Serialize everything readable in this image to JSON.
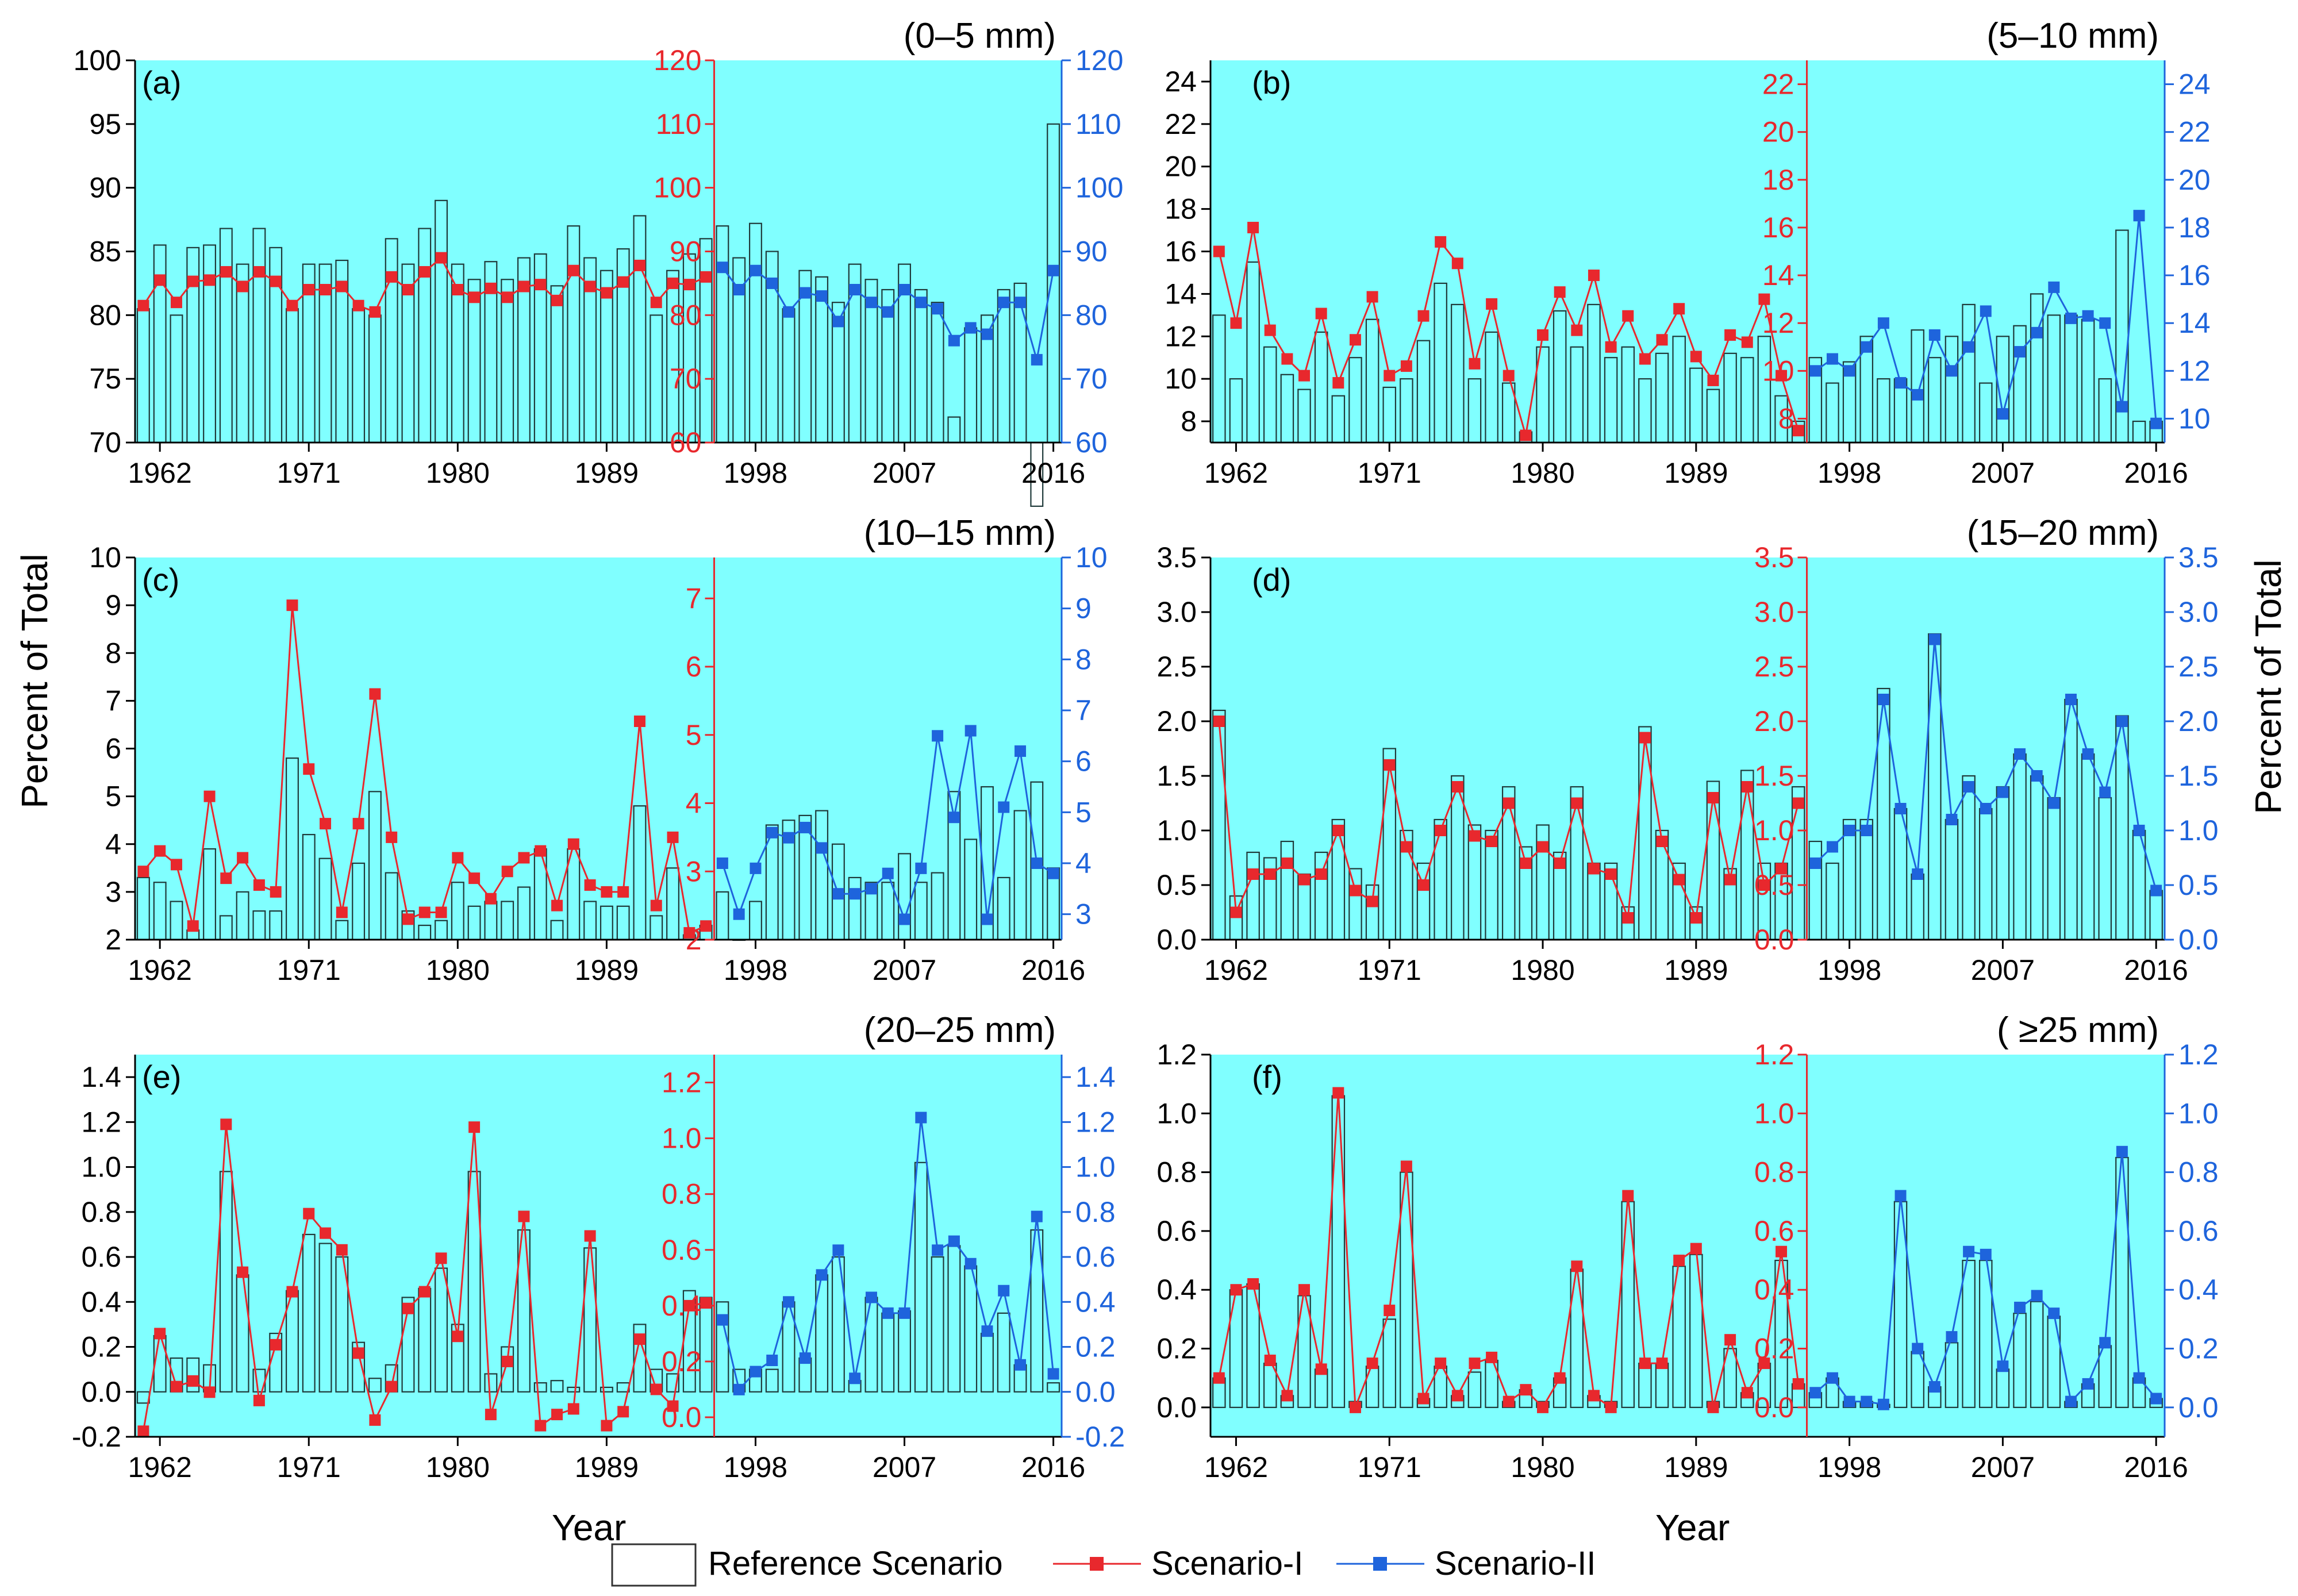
{
  "figure": {
    "y_axis_title": "Percent of Total",
    "x_axis_title": "Year",
    "colors": {
      "background": "#80ffff",
      "scenario_I": "#e8282d",
      "scenario_II": "#1e64dc",
      "bars": "#1f3a3a"
    },
    "legend": {
      "reference": "Reference Scenario",
      "scenario_I": "Scenario-I",
      "scenario_II": "Scenario-II"
    }
  },
  "chart_data": [
    {
      "type": "bar",
      "panel_label": "(a)",
      "title": "(0–5 mm)",
      "x_start": 1961,
      "x_end": 2016,
      "xticks": [
        1962,
        1971,
        1980,
        1989,
        1998,
        2007,
        2016
      ],
      "scenario_I_years": [
        1961,
        1995
      ],
      "scenario_II_years": [
        1996,
        2016
      ],
      "left_axis": {
        "ylim": [
          70,
          100
        ],
        "ticks": [
          70,
          75,
          80,
          85,
          90,
          95,
          100
        ]
      },
      "red_axis": {
        "ylim": [
          60,
          120
        ],
        "ticks": [
          60,
          70,
          80,
          90,
          100,
          110,
          120
        ]
      },
      "blue_axis": {
        "ylim": [
          60,
          120
        ],
        "ticks": [
          60,
          70,
          80,
          90,
          100,
          110,
          120
        ]
      },
      "reference_values": [
        80.5,
        85.5,
        80.0,
        85.3,
        85.5,
        86.8,
        84.0,
        86.8,
        85.3,
        80.5,
        84.0,
        84.0,
        84.3,
        80.5,
        80.0,
        86.0,
        84.0,
        86.8,
        89.0,
        84.0,
        82.8,
        84.2,
        82.8,
        84.5,
        84.8,
        82.3,
        87.0,
        84.5,
        83.5,
        85.2,
        87.8,
        80.0,
        83.5,
        84.8,
        86.0,
        87.0,
        84.5,
        87.2,
        85.0,
        80.5,
        83.5,
        83.0,
        81.0,
        84.0,
        82.8,
        82.0,
        84.0,
        82.0,
        81.0,
        72.0,
        79.0,
        80.0,
        82.0,
        82.5,
        65.0,
        95.0
      ],
      "scenario_I_values": [
        81.5,
        85.5,
        82.0,
        85.3,
        85.5,
        86.8,
        84.5,
        86.8,
        85.3,
        81.5,
        84.0,
        84.0,
        84.5,
        81.5,
        80.5,
        86.0,
        84.0,
        86.8,
        89.0,
        84.0,
        82.8,
        84.2,
        82.8,
        84.5,
        84.8,
        82.3,
        87.0,
        84.5,
        83.5,
        85.2,
        87.8,
        82.0,
        85.0,
        84.8,
        86.0
      ],
      "scenario_II_values": [
        87.5,
        84.0,
        87.0,
        85.0,
        80.5,
        83.5,
        83.0,
        79.0,
        84.0,
        82.0,
        80.5,
        84.0,
        82.0,
        81.0,
        76.0,
        78.0,
        77.0,
        82.0,
        82.0,
        73.0,
        87.0
      ]
    },
    {
      "type": "bar",
      "panel_label": "(b)",
      "title": "(5–10 mm)",
      "x_start": 1961,
      "x_end": 2016,
      "xticks": [
        1962,
        1971,
        1980,
        1989,
        1998,
        2007,
        2016
      ],
      "scenario_I_years": [
        1961,
        1995
      ],
      "scenario_II_years": [
        1996,
        2016
      ],
      "left_axis": {
        "ylim": [
          7,
          25
        ],
        "ticks": [
          8,
          10,
          12,
          14,
          16,
          18,
          20,
          22,
          24
        ]
      },
      "red_axis": {
        "ylim": [
          7,
          23
        ],
        "ticks": [
          8,
          10,
          12,
          14,
          16,
          18,
          20,
          22
        ]
      },
      "blue_axis": {
        "ylim": [
          9,
          25
        ],
        "ticks": [
          10,
          12,
          14,
          16,
          18,
          20,
          22,
          24
        ]
      },
      "reference_values": [
        13.0,
        10.0,
        15.5,
        11.5,
        10.2,
        9.5,
        12.2,
        9.2,
        11.0,
        12.8,
        9.6,
        10.0,
        11.8,
        14.5,
        13.5,
        10.0,
        12.2,
        9.8,
        7.5,
        11.5,
        13.2,
        11.5,
        13.5,
        11.0,
        11.5,
        10.0,
        11.2,
        12.0,
        10.5,
        9.5,
        11.2,
        11.0,
        12.0,
        9.2,
        8.0,
        11.0,
        9.8,
        10.8,
        12.0,
        10.0,
        10.0,
        12.3,
        11.0,
        12.0,
        13.5,
        9.8,
        12.0,
        12.5,
        14.0,
        13.0,
        13.0,
        12.8,
        10.0,
        17.0,
        8.0,
        8.0
      ],
      "scenario_I_values": [
        15.0,
        12.0,
        16.0,
        11.7,
        10.5,
        9.8,
        12.4,
        9.5,
        11.3,
        13.1,
        9.8,
        10.2,
        12.3,
        15.4,
        14.5,
        10.3,
        12.8,
        9.8,
        7.3,
        11.5,
        13.3,
        11.7,
        14.0,
        11.0,
        12.3,
        10.5,
        11.3,
        12.6,
        10.6,
        9.6,
        11.5,
        11.2,
        13.0,
        9.8,
        7.5
      ],
      "scenario_II_values": [
        12.0,
        12.5,
        12.0,
        13.0,
        14.0,
        11.5,
        11.0,
        13.5,
        12.0,
        13.0,
        14.5,
        10.2,
        12.8,
        13.6,
        15.5,
        14.2,
        14.3,
        14.0,
        10.5,
        18.5,
        9.8
      ]
    },
    {
      "type": "bar",
      "panel_label": "(c)",
      "title": "(10–15 mm)",
      "x_start": 1961,
      "x_end": 2016,
      "xticks": [
        1962,
        1971,
        1980,
        1989,
        1998,
        2007,
        2016
      ],
      "scenario_I_years": [
        1961,
        1995
      ],
      "scenario_II_years": [
        1996,
        2016
      ],
      "left_axis": {
        "ylim": [
          2,
          10
        ],
        "ticks": [
          2,
          3,
          4,
          5,
          6,
          7,
          8,
          9,
          10
        ]
      },
      "red_axis": {
        "ylim": [
          2,
          7.6
        ],
        "ticks": [
          2,
          3,
          4,
          5,
          6,
          7
        ]
      },
      "blue_axis": {
        "ylim": [
          2.5,
          10
        ],
        "ticks": [
          3,
          4,
          5,
          6,
          7,
          8,
          9,
          10
        ]
      },
      "reference_values": [
        3.3,
        3.2,
        2.8,
        2.2,
        3.9,
        2.5,
        3.0,
        2.6,
        2.6,
        5.8,
        4.2,
        3.7,
        2.4,
        3.6,
        5.1,
        3.4,
        2.6,
        2.3,
        2.4,
        3.2,
        2.7,
        2.8,
        2.8,
        3.1,
        3.9,
        2.4,
        3.9,
        2.8,
        2.7,
        2.7,
        4.8,
        2.5,
        3.5,
        2.1,
        2.3,
        3.0,
        2.0,
        2.8,
        4.4,
        4.5,
        4.6,
        4.7,
        4.0,
        3.3,
        3.2,
        3.2,
        3.8,
        3.2,
        3.4,
        5.1,
        4.1,
        5.2,
        3.3,
        4.7,
        5.3,
        3.5
      ],
      "scenario_I_values": [
        3.0,
        3.3,
        3.1,
        2.2,
        4.1,
        2.9,
        3.2,
        2.8,
        2.7,
        6.9,
        4.5,
        3.7,
        2.4,
        3.7,
        5.6,
        3.5,
        2.3,
        2.4,
        2.4,
        3.2,
        2.9,
        2.6,
        3.0,
        3.2,
        3.3,
        2.5,
        3.4,
        2.8,
        2.7,
        2.7,
        5.2,
        2.5,
        3.5,
        2.1,
        2.2
      ],
      "scenario_II_values": [
        4.0,
        3.0,
        3.9,
        4.6,
        4.5,
        4.7,
        4.3,
        3.4,
        3.4,
        3.5,
        3.8,
        2.9,
        3.9,
        6.5,
        4.9,
        6.6,
        2.9,
        5.1,
        6.2,
        4.0,
        3.8
      ]
    },
    {
      "type": "bar",
      "panel_label": "(d)",
      "title": "(15–20 mm)",
      "x_start": 1961,
      "x_end": 2016,
      "xticks": [
        1962,
        1971,
        1980,
        1989,
        1998,
        2007,
        2016
      ],
      "scenario_I_years": [
        1961,
        1995
      ],
      "scenario_II_years": [
        1996,
        2016
      ],
      "left_axis": {
        "ylim": [
          0,
          3.5
        ],
        "ticks": [
          0.0,
          0.5,
          1.0,
          1.5,
          2.0,
          2.5,
          3.0,
          3.5
        ]
      },
      "red_axis": {
        "ylim": [
          0,
          3.5
        ],
        "ticks": [
          0.0,
          0.5,
          1.0,
          1.5,
          2.0,
          2.5,
          3.0,
          3.5
        ]
      },
      "blue_axis": {
        "ylim": [
          0,
          3.5
        ],
        "ticks": [
          0.0,
          0.5,
          1.0,
          1.5,
          2.0,
          2.5,
          3.0,
          3.5
        ]
      },
      "reference_values": [
        2.1,
        0.4,
        0.8,
        0.75,
        0.9,
        0.6,
        0.8,
        1.1,
        0.65,
        0.5,
        1.75,
        1.0,
        0.7,
        1.1,
        1.5,
        1.05,
        1.0,
        1.4,
        0.85,
        1.05,
        0.8,
        1.4,
        0.7,
        0.7,
        0.3,
        1.95,
        1.0,
        0.7,
        0.3,
        1.45,
        0.65,
        1.55,
        0.7,
        0.7,
        1.4,
        0.9,
        0.7,
        1.1,
        1.1,
        2.3,
        1.2,
        0.6,
        2.8,
        1.1,
        1.5,
        1.2,
        1.4,
        1.7,
        1.5,
        1.3,
        2.2,
        1.7,
        1.3,
        2.05,
        1.0,
        0.45
      ],
      "scenario_I_values": [
        2.0,
        0.25,
        0.6,
        0.6,
        0.7,
        0.55,
        0.6,
        1.0,
        0.45,
        0.35,
        1.6,
        0.85,
        0.5,
        1.0,
        1.4,
        0.95,
        0.9,
        1.25,
        0.7,
        0.85,
        0.7,
        1.25,
        0.65,
        0.6,
        0.2,
        1.85,
        0.9,
        0.55,
        0.2,
        1.3,
        0.55,
        1.4,
        0.5,
        0.65,
        1.25
      ],
      "scenario_II_values": [
        0.7,
        0.85,
        1.0,
        1.0,
        2.2,
        1.2,
        0.6,
        2.75,
        1.1,
        1.4,
        1.2,
        1.35,
        1.7,
        1.5,
        1.25,
        2.2,
        1.7,
        1.35,
        2.0,
        1.0,
        0.45
      ]
    },
    {
      "type": "bar",
      "panel_label": "(e)",
      "title": "(20–25 mm)",
      "x_start": 1961,
      "x_end": 2016,
      "xticks": [
        1962,
        1971,
        1980,
        1989,
        1998,
        2007,
        2016
      ],
      "scenario_I_years": [
        1961,
        1995
      ],
      "scenario_II_years": [
        1996,
        2016
      ],
      "left_axis": {
        "ylim": [
          -0.2,
          1.5
        ],
        "ticks": [
          -0.2,
          0.0,
          0.2,
          0.4,
          0.6,
          0.8,
          1.0,
          1.2,
          1.4
        ]
      },
      "red_axis": {
        "ylim": [
          -0.07,
          1.3
        ],
        "ticks": [
          0.0,
          0.2,
          0.4,
          0.6,
          0.8,
          1.0,
          1.2
        ]
      },
      "blue_axis": {
        "ylim": [
          -0.2,
          1.5
        ],
        "ticks": [
          -0.2,
          0.0,
          0.2,
          0.4,
          0.6,
          0.8,
          1.0,
          1.2,
          1.4
        ]
      },
      "reference_values": [
        -0.05,
        0.25,
        0.15,
        0.15,
        0.12,
        0.98,
        0.52,
        0.1,
        0.26,
        0.45,
        0.7,
        0.66,
        0.6,
        0.22,
        0.06,
        0.12,
        0.42,
        0.46,
        0.55,
        0.3,
        0.98,
        0.08,
        0.2,
        0.72,
        0.04,
        0.05,
        0.02,
        0.64,
        0.02,
        0.04,
        0.3,
        0.1,
        0.08,
        0.45,
        0.42,
        0.4,
        0.1,
        0.1,
        0.1,
        0.4,
        0.15,
        0.52,
        0.6,
        0.05,
        0.42,
        0.35,
        0.36,
        1.02,
        0.6,
        0.65,
        0.56,
        0.26,
        0.35,
        0.12,
        0.72,
        0.04
      ],
      "scenario_I_values": [
        -0.05,
        0.3,
        0.11,
        0.13,
        0.09,
        1.05,
        0.52,
        0.06,
        0.26,
        0.45,
        0.73,
        0.66,
        0.6,
        0.23,
        -0.01,
        0.11,
        0.39,
        0.45,
        0.57,
        0.29,
        1.04,
        0.01,
        0.2,
        0.72,
        -0.03,
        0.01,
        0.03,
        0.65,
        -0.03,
        0.02,
        0.28,
        0.1,
        0.04,
        0.4,
        0.41
      ],
      "scenario_II_values": [
        0.32,
        0.01,
        0.09,
        0.14,
        0.4,
        0.15,
        0.52,
        0.63,
        0.06,
        0.42,
        0.35,
        0.35,
        1.22,
        0.63,
        0.67,
        0.57,
        0.27,
        0.45,
        0.12,
        0.78,
        0.08
      ]
    },
    {
      "type": "bar",
      "panel_label": "(f)",
      "title": "( ≥25 mm)",
      "x_start": 1961,
      "x_end": 2016,
      "xticks": [
        1962,
        1971,
        1980,
        1989,
        1998,
        2007,
        2016
      ],
      "scenario_I_years": [
        1961,
        1995
      ],
      "scenario_II_years": [
        1996,
        2016
      ],
      "left_axis": {
        "ylim": [
          -0.1,
          1.2
        ],
        "ticks": [
          0.0,
          0.2,
          0.4,
          0.6,
          0.8,
          1.0,
          1.2
        ]
      },
      "red_axis": {
        "ylim": [
          -0.1,
          1.2
        ],
        "ticks": [
          0.0,
          0.2,
          0.4,
          0.6,
          0.8,
          1.0,
          1.2
        ]
      },
      "blue_axis": {
        "ylim": [
          -0.1,
          1.2
        ],
        "ticks": [
          0.0,
          0.2,
          0.4,
          0.6,
          0.8,
          1.0,
          1.2
        ]
      },
      "reference_values": [
        0.1,
        0.4,
        0.42,
        0.15,
        0.04,
        0.38,
        0.13,
        1.06,
        0.02,
        0.14,
        0.3,
        0.8,
        0.03,
        0.14,
        0.04,
        0.12,
        0.16,
        0.02,
        0.06,
        0.02,
        0.1,
        0.47,
        0.04,
        0.02,
        0.7,
        0.15,
        0.15,
        0.48,
        0.52,
        0.02,
        0.2,
        0.05,
        0.15,
        0.5,
        0.08,
        0.05,
        0.1,
        0.02,
        0.02,
        0.01,
        0.7,
        0.19,
        0.07,
        0.22,
        0.5,
        0.5,
        0.13,
        0.32,
        0.36,
        0.31,
        0.02,
        0.08,
        0.21,
        0.85,
        0.1,
        0.03
      ],
      "scenario_I_values": [
        0.1,
        0.4,
        0.42,
        0.16,
        0.04,
        0.4,
        0.13,
        1.07,
        0.0,
        0.15,
        0.33,
        0.82,
        0.03,
        0.15,
        0.04,
        0.15,
        0.17,
        0.02,
        0.06,
        0.0,
        0.1,
        0.48,
        0.04,
        0.0,
        0.72,
        0.15,
        0.15,
        0.5,
        0.54,
        0.0,
        0.23,
        0.05,
        0.15,
        0.53,
        0.08
      ],
      "scenario_II_values": [
        0.05,
        0.1,
        0.02,
        0.02,
        0.01,
        0.72,
        0.2,
        0.07,
        0.24,
        0.53,
        0.52,
        0.14,
        0.34,
        0.38,
        0.32,
        0.02,
        0.08,
        0.22,
        0.87,
        0.1,
        0.03
      ]
    }
  ]
}
